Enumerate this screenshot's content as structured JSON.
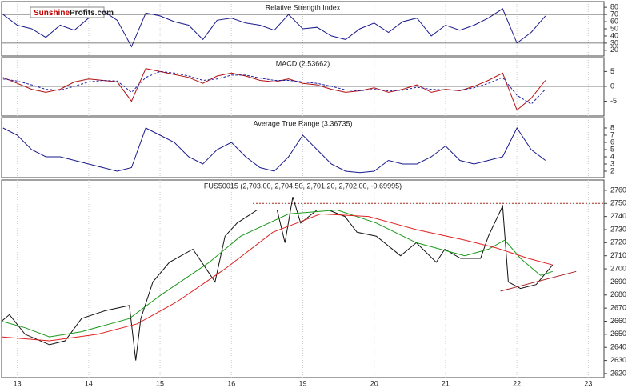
{
  "logo": {
    "part1": "Sunshine",
    "part2": "Profits.com"
  },
  "chart_data": [
    {
      "type": "line",
      "title": "Relative Strength Index",
      "x": [
        -0.2,
        0,
        0.2,
        0.4,
        0.6,
        0.8,
        1.0,
        1.2,
        1.4,
        1.6,
        1.8,
        2.0,
        2.2,
        2.4,
        2.6,
        2.8,
        3.0,
        3.2,
        3.4,
        3.6,
        3.8,
        4.0,
        4.2,
        4.4,
        4.6,
        4.8,
        5.0,
        5.2,
        5.4,
        5.6,
        5.8,
        6.0,
        6.2,
        6.4,
        6.6,
        6.8,
        7.0,
        7.2,
        7.4
      ],
      "series": [
        {
          "color": "#1a1a8c",
          "values": [
            70,
            55,
            50,
            38,
            55,
            48,
            65,
            75,
            62,
            25,
            72,
            68,
            60,
            55,
            35,
            62,
            65,
            58,
            55,
            48,
            70,
            50,
            52,
            40,
            35,
            50,
            58,
            45,
            60,
            65,
            40,
            55,
            48,
            55,
            65,
            78,
            30,
            45,
            68
          ]
        }
      ],
      "ylim": [
        12,
        88
      ],
      "yticks": [
        80,
        70,
        60,
        50,
        40,
        30,
        20
      ],
      "hlines": [
        70,
        30
      ]
    },
    {
      "type": "line",
      "title": "MACD (2.53662)",
      "x": [
        -0.2,
        0,
        0.2,
        0.4,
        0.6,
        0.8,
        1.0,
        1.2,
        1.4,
        1.6,
        1.8,
        2.0,
        2.2,
        2.4,
        2.6,
        2.8,
        3.0,
        3.2,
        3.4,
        3.6,
        3.8,
        4.0,
        4.2,
        4.4,
        4.6,
        4.8,
        5.0,
        5.2,
        5.4,
        5.6,
        5.8,
        6.0,
        6.2,
        6.4,
        6.6,
        6.8,
        7.0,
        7.2,
        7.4
      ],
      "series": [
        {
          "color": "#b01010",
          "dashed": false,
          "values": [
            3,
            1,
            -1,
            -2,
            -1,
            1.5,
            2.5,
            2,
            1.5,
            -5,
            6,
            5,
            4,
            3,
            1,
            3.5,
            4.5,
            3.5,
            2,
            1.5,
            2.5,
            1,
            0.5,
            -1,
            -2,
            -1.5,
            -0.5,
            -2,
            -1,
            0.5,
            -2,
            -1,
            -1.5,
            0,
            2,
            4.5,
            -8,
            -4,
            2
          ]
        },
        {
          "color": "#2020a0",
          "dashed": true,
          "values": [
            2.5,
            1.8,
            0.5,
            -1,
            -1.3,
            0,
            1.5,
            2,
            1.8,
            -2,
            3,
            5,
            4.5,
            3.5,
            2,
            2.5,
            3.8,
            3.8,
            2.8,
            2,
            2,
            1.5,
            1,
            0,
            -1.2,
            -1.5,
            -1,
            -1.5,
            -1.3,
            -0.3,
            -1,
            -1.2,
            -1.3,
            -0.5,
            1,
            3,
            -3,
            -6,
            -1
          ]
        }
      ],
      "ylim": [
        -10,
        9.7
      ],
      "yticks": [
        5,
        0,
        -5
      ],
      "hlines": [
        0
      ]
    },
    {
      "type": "line",
      "title": "Average True Range (3.36735)",
      "x": [
        -0.2,
        0,
        0.2,
        0.4,
        0.6,
        0.8,
        1.0,
        1.2,
        1.4,
        1.6,
        1.8,
        2.0,
        2.2,
        2.4,
        2.6,
        2.8,
        3.0,
        3.2,
        3.4,
        3.6,
        3.8,
        4.0,
        4.2,
        4.4,
        4.6,
        4.8,
        5.0,
        5.2,
        5.4,
        5.6,
        5.8,
        6.0,
        6.2,
        6.4,
        6.6,
        6.8,
        7.0,
        7.2,
        7.4
      ],
      "series": [
        {
          "color": "#1a1a8c",
          "values": [
            8,
            7,
            5,
            4,
            4,
            3.5,
            3,
            2.5,
            2,
            2.5,
            8,
            7,
            6,
            4,
            3,
            5,
            6,
            4,
            2.5,
            2,
            4,
            7,
            5,
            3,
            2,
            1.8,
            2,
            3.5,
            3,
            3,
            4,
            5.5,
            3.5,
            3,
            3.5,
            4,
            8,
            5,
            3.5
          ]
        }
      ],
      "ylim": [
        1.11,
        9.44
      ],
      "yticks": [
        8,
        7,
        6,
        5,
        4,
        3,
        2
      ],
      "hlines": []
    },
    {
      "type": "line",
      "title": "FUS50015 (2,703.00, 2,704.50, 2,701.20, 2,702.00, -0.69995)",
      "series": [
        {
          "color": "#111111",
          "x": [
            -0.22,
            -0.11,
            0.11,
            0.45,
            0.67,
            0.9,
            1.23,
            1.57,
            1.66,
            1.73,
            1.9,
            2.13,
            2.46,
            2.77,
            2.91,
            3.08,
            3.36,
            3.64,
            3.75,
            3.86,
            3.97,
            4.2,
            4.36,
            4.59,
            4.76,
            5.03,
            5.37,
            5.59,
            5.87,
            5.99,
            6.21,
            6.49,
            6.6,
            6.8,
            6.88,
            7.05,
            7.27,
            7.5
          ],
          "values": [
            2660,
            2665,
            2650,
            2642,
            2645,
            2662,
            2668,
            2672,
            2630,
            2662,
            2690,
            2705,
            2715,
            2690,
            2725,
            2735,
            2745,
            2745,
            2720,
            2755,
            2735,
            2745,
            2745,
            2740,
            2728,
            2725,
            2710,
            2720,
            2705,
            2715,
            2708,
            2708,
            2725,
            2748,
            2690,
            2685,
            2688,
            2703
          ]
        },
        {
          "color": "#1a9a1a",
          "x": [
            -0.22,
            0.11,
            0.45,
            0.9,
            1.57,
            2.01,
            2.69,
            3.13,
            3.8,
            4.48,
            5.03,
            5.59,
            6.27,
            6.6,
            6.83,
            7.05,
            7.33,
            7.5
          ],
          "values": [
            2660,
            2655,
            2648,
            2652,
            2662,
            2680,
            2705,
            2725,
            2742,
            2745,
            2735,
            2720,
            2710,
            2715,
            2722,
            2708,
            2695,
            2698
          ]
        },
        {
          "color": "#e02020",
          "x": [
            -0.22,
            0.45,
            1.12,
            1.68,
            2.24,
            2.91,
            3.58,
            4.25,
            4.92,
            5.59,
            6.27,
            6.71,
            7.16,
            7.5
          ],
          "values": [
            2648,
            2645,
            2650,
            2658,
            2675,
            2700,
            2728,
            2742,
            2740,
            2730,
            2722,
            2716,
            2708,
            2703
          ]
        },
        {
          "color": "#a02020",
          "x": [
            6.77,
            7.83
          ],
          "values": [
            2683,
            2698
          ]
        }
      ],
      "resistance": {
        "value": 2750,
        "x": [
          3.3,
          8.22
        ],
        "color": "#a02020"
      },
      "xlim": [
        -0.22,
        8.22
      ],
      "xticks": [
        {
          "value": 0,
          "label": "13"
        },
        {
          "value": 1,
          "label": "14"
        },
        {
          "value": 2,
          "label": "15"
        },
        {
          "value": 3,
          "label": "16"
        },
        {
          "value": 4,
          "label": "19"
        },
        {
          "value": 5,
          "label": "20"
        },
        {
          "value": 6,
          "label": "21"
        },
        {
          "value": 7,
          "label": "22"
        },
        {
          "value": 8,
          "label": "23"
        }
      ],
      "ylim": [
        2616.9,
        2767.9
      ],
      "yticks": [
        2760,
        2750,
        2740,
        2730,
        2720,
        2710,
        2700,
        2690,
        2680,
        2670,
        2660,
        2650,
        2640,
        2630,
        2620
      ],
      "hlines": []
    }
  ]
}
